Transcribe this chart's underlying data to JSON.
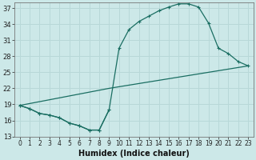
{
  "xlabel": "Humidex (Indice chaleur)",
  "ylabel": "",
  "bg_color": "#cce8e8",
  "line_color": "#1a6e62",
  "grid_color": "#b8d8d8",
  "xlim": [
    -0.5,
    23.5
  ],
  "ylim": [
    13,
    38
  ],
  "yticks": [
    13,
    16,
    19,
    22,
    25,
    28,
    31,
    34,
    37
  ],
  "xticks": [
    0,
    1,
    2,
    3,
    4,
    5,
    6,
    7,
    8,
    9,
    10,
    11,
    12,
    13,
    14,
    15,
    16,
    17,
    18,
    19,
    20,
    21,
    22,
    23
  ],
  "curve1_x": [
    0,
    1,
    2,
    3,
    4,
    5,
    6,
    7,
    8,
    9
  ],
  "curve1_y": [
    18.8,
    18.2,
    17.3,
    17.0,
    16.5,
    15.5,
    15.0,
    14.2,
    14.2,
    18.0
  ],
  "curve2_x": [
    0,
    1,
    2,
    3,
    4,
    5,
    6,
    7,
    8,
    9,
    10,
    11,
    12,
    13,
    14,
    15,
    16,
    17,
    18,
    19,
    20,
    21,
    22,
    23
  ],
  "curve2_y": [
    18.8,
    18.2,
    17.3,
    17.0,
    16.5,
    15.5,
    15.0,
    14.2,
    14.2,
    18.0,
    29.5,
    33.0,
    34.5,
    35.5,
    36.5,
    37.2,
    37.8,
    37.8,
    37.2,
    34.2,
    29.5,
    28.5,
    27.0,
    26.2
  ],
  "curve3_x": [
    0,
    9,
    23
  ],
  "curve3_y": [
    18.8,
    22.0,
    26.2
  ],
  "marker_size": 3.5
}
